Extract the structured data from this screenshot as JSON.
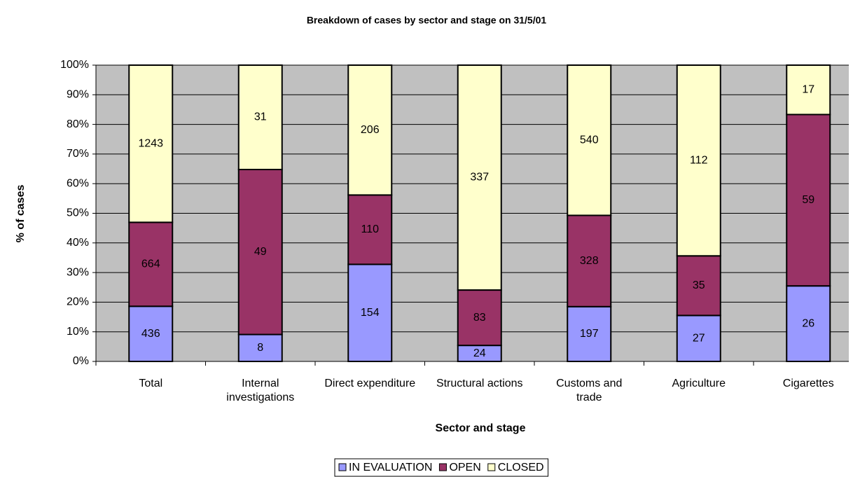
{
  "chart_data": {
    "type": "bar",
    "stacked": "percent",
    "title": "Breakdown of cases by sector and stage on 31/5/01",
    "x_label": "Sector and stage",
    "y_label": "% of cases",
    "categories": [
      "Total",
      "Internal investigations",
      "Direct expenditure",
      "Structural actions",
      "Customs and trade",
      "Agriculture",
      "Cigarettes"
    ],
    "series": [
      {
        "name": "IN EVALUATION",
        "color": "#9999ff",
        "values": [
          436,
          8,
          154,
          24,
          197,
          27,
          26
        ]
      },
      {
        "name": "OPEN",
        "color": "#993366",
        "values": [
          664,
          49,
          110,
          83,
          328,
          35,
          59
        ]
      },
      {
        "name": "CLOSED",
        "color": "#ffffcc",
        "values": [
          1243,
          31,
          206,
          337,
          540,
          112,
          17
        ]
      }
    ],
    "ylim": [
      0,
      100
    ],
    "yticks": [
      {
        "value": 0,
        "label": "0%"
      },
      {
        "value": 10,
        "label": "10%"
      },
      {
        "value": 20,
        "label": "20%"
      },
      {
        "value": 30,
        "label": "30%"
      },
      {
        "value": 40,
        "label": "40%"
      },
      {
        "value": 50,
        "label": "50%"
      },
      {
        "value": 60,
        "label": "60%"
      },
      {
        "value": 70,
        "label": "70%"
      },
      {
        "value": 80,
        "label": "80%"
      },
      {
        "value": 90,
        "label": "90%"
      },
      {
        "value": 100,
        "label": "100%"
      }
    ],
    "grid": true,
    "legend": "bottom",
    "background": "#c0c0c0"
  }
}
